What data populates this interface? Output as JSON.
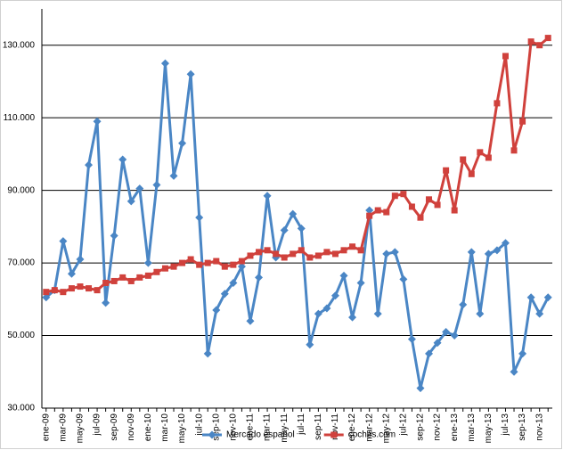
{
  "chart_data": {
    "type": "line",
    "categories": [
      "ene-09",
      null,
      "mar-09",
      null,
      "may-09",
      null,
      "jul-09",
      null,
      "sep-09",
      null,
      "nov-09",
      null,
      "ene-10",
      null,
      "mar-10",
      null,
      "may-10",
      null,
      "jul-10",
      null,
      "sep-10",
      null,
      "nov-10",
      null,
      "ene-11",
      null,
      "mar-11",
      null,
      "may-11",
      null,
      "jul-11",
      null,
      "sep-11",
      null,
      "nov-11",
      null,
      "ene-12",
      null,
      "mar-12",
      null,
      "may-12",
      null,
      "jul-12",
      null,
      "sep-12",
      null,
      "nov-12",
      null,
      "ene-13",
      null,
      "mar-13",
      null,
      "may-13",
      null,
      "jul-13",
      null,
      "sep-13",
      null,
      "nov-13",
      null
    ],
    "series": [
      {
        "name": "Mercado español",
        "color": "#4a86c5",
        "marker": "diamond",
        "values": [
          60500,
          62500,
          76000,
          67000,
          71000,
          97000,
          109000,
          59000,
          77500,
          98500,
          87000,
          90500,
          70000,
          91500,
          125000,
          94000,
          103000,
          122000,
          82500,
          45000,
          57000,
          61500,
          64500,
          69000,
          54000,
          66000,
          88500,
          71500,
          79000,
          83500,
          79500,
          47500,
          56000,
          57500,
          61000,
          66500,
          55000,
          64500,
          84500,
          56000,
          72500,
          73000,
          65500,
          49000,
          35500,
          45000,
          48000,
          51000,
          50000,
          58500,
          73000,
          56000,
          72500,
          73500,
          75500,
          40000,
          45000,
          60500,
          56000,
          60500
        ]
      },
      {
        "name": "coches.com",
        "color": "#d0413c",
        "marker": "square",
        "values": [
          62000,
          62500,
          62000,
          63000,
          63500,
          63000,
          62500,
          64500,
          65000,
          66000,
          65000,
          66000,
          66500,
          67500,
          68500,
          69000,
          70000,
          71000,
          69500,
          70000,
          70500,
          69000,
          69500,
          70500,
          72000,
          73000,
          73500,
          72500,
          71500,
          72500,
          73500,
          71500,
          72000,
          73000,
          72500,
          73500,
          74500,
          73500,
          83000,
          84500,
          84000,
          88500,
          89000,
          85500,
          82500,
          87500,
          86000,
          95500,
          84500,
          98500,
          94500,
          100500,
          99000,
          114000,
          127000,
          101000,
          109000,
          131000,
          130000,
          132000
        ]
      }
    ],
    "ylim": [
      30000,
      140000
    ],
    "yticks": [
      {
        "value": 30000,
        "label": "30.000"
      },
      {
        "value": 50000,
        "label": "50.000"
      },
      {
        "value": 70000,
        "label": "70.000"
      },
      {
        "value": 90000,
        "label": "90.000"
      },
      {
        "value": 110000,
        "label": "110.000"
      },
      {
        "value": 130000,
        "label": "130.000"
      }
    ],
    "grid": true,
    "legend": "bottom"
  }
}
